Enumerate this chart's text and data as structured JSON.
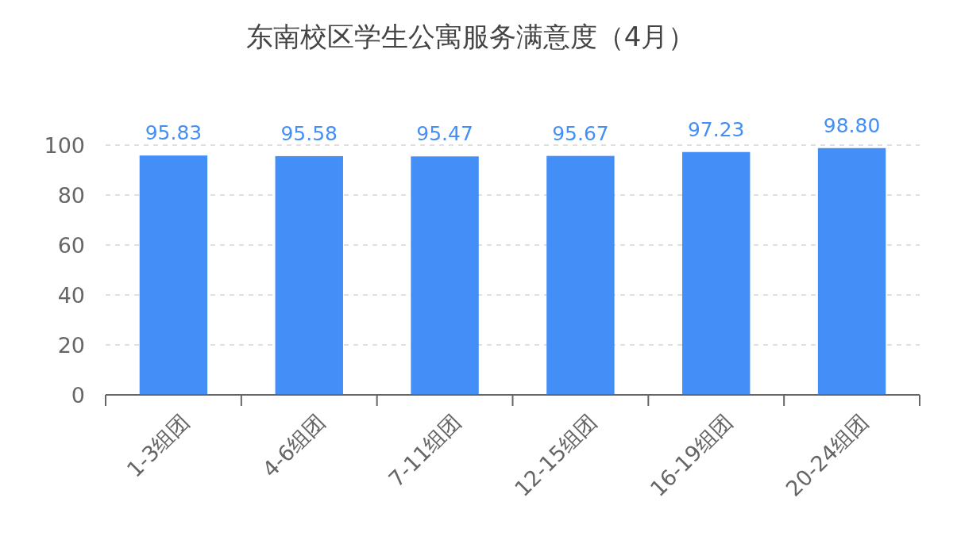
{
  "chart_data": {
    "type": "bar",
    "title": "东南校区学生公寓服务满意度（4月）",
    "categories": [
      "1-3组团",
      "4-6组团",
      "7-11组团",
      "12-15组团",
      "16-19组团",
      "20-24组团"
    ],
    "values": [
      95.83,
      95.58,
      95.47,
      95.67,
      97.23,
      98.8
    ],
    "value_labels": [
      "95.83",
      "95.58",
      "95.47",
      "95.67",
      "97.23",
      "98.80"
    ],
    "color": "#448ef7",
    "ylim": [
      0,
      100
    ],
    "yticks": [
      0,
      20,
      40,
      60,
      80,
      100
    ],
    "grid": "y"
  }
}
